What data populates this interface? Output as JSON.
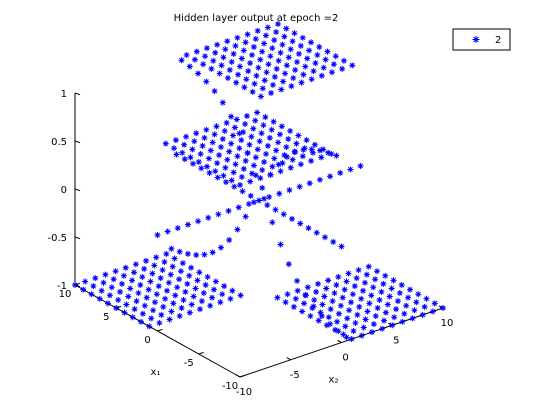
{
  "chart_data": {
    "type": "scatter",
    "title": "Hidden layer output at epoch =2",
    "xlabel": "x₁",
    "ylabel": "x₂",
    "zlabel": "",
    "xlim": [
      -10,
      10
    ],
    "ylim": [
      -10,
      10
    ],
    "zlim": [
      -1,
      1
    ],
    "x_ticks": [
      -10,
      -5,
      0,
      5,
      10
    ],
    "y_ticks": [
      -10,
      -5,
      0,
      5,
      10
    ],
    "z_ticks": [
      -1,
      -0.5,
      0,
      0.5,
      1
    ],
    "grid": false,
    "legend": {
      "position": "top-right",
      "entries": [
        "2"
      ]
    },
    "series": [
      {
        "name": "2",
        "marker": "asterisk",
        "color": "#0000ff",
        "grid_x": [
          -10,
          10,
          1
        ],
        "grid_y": [
          -10,
          10,
          1
        ],
        "z_rule": "sign(x*y)",
        "note_values": "z = +1 where x*y>0, z = -1 where x*y<0"
      }
    ]
  }
}
